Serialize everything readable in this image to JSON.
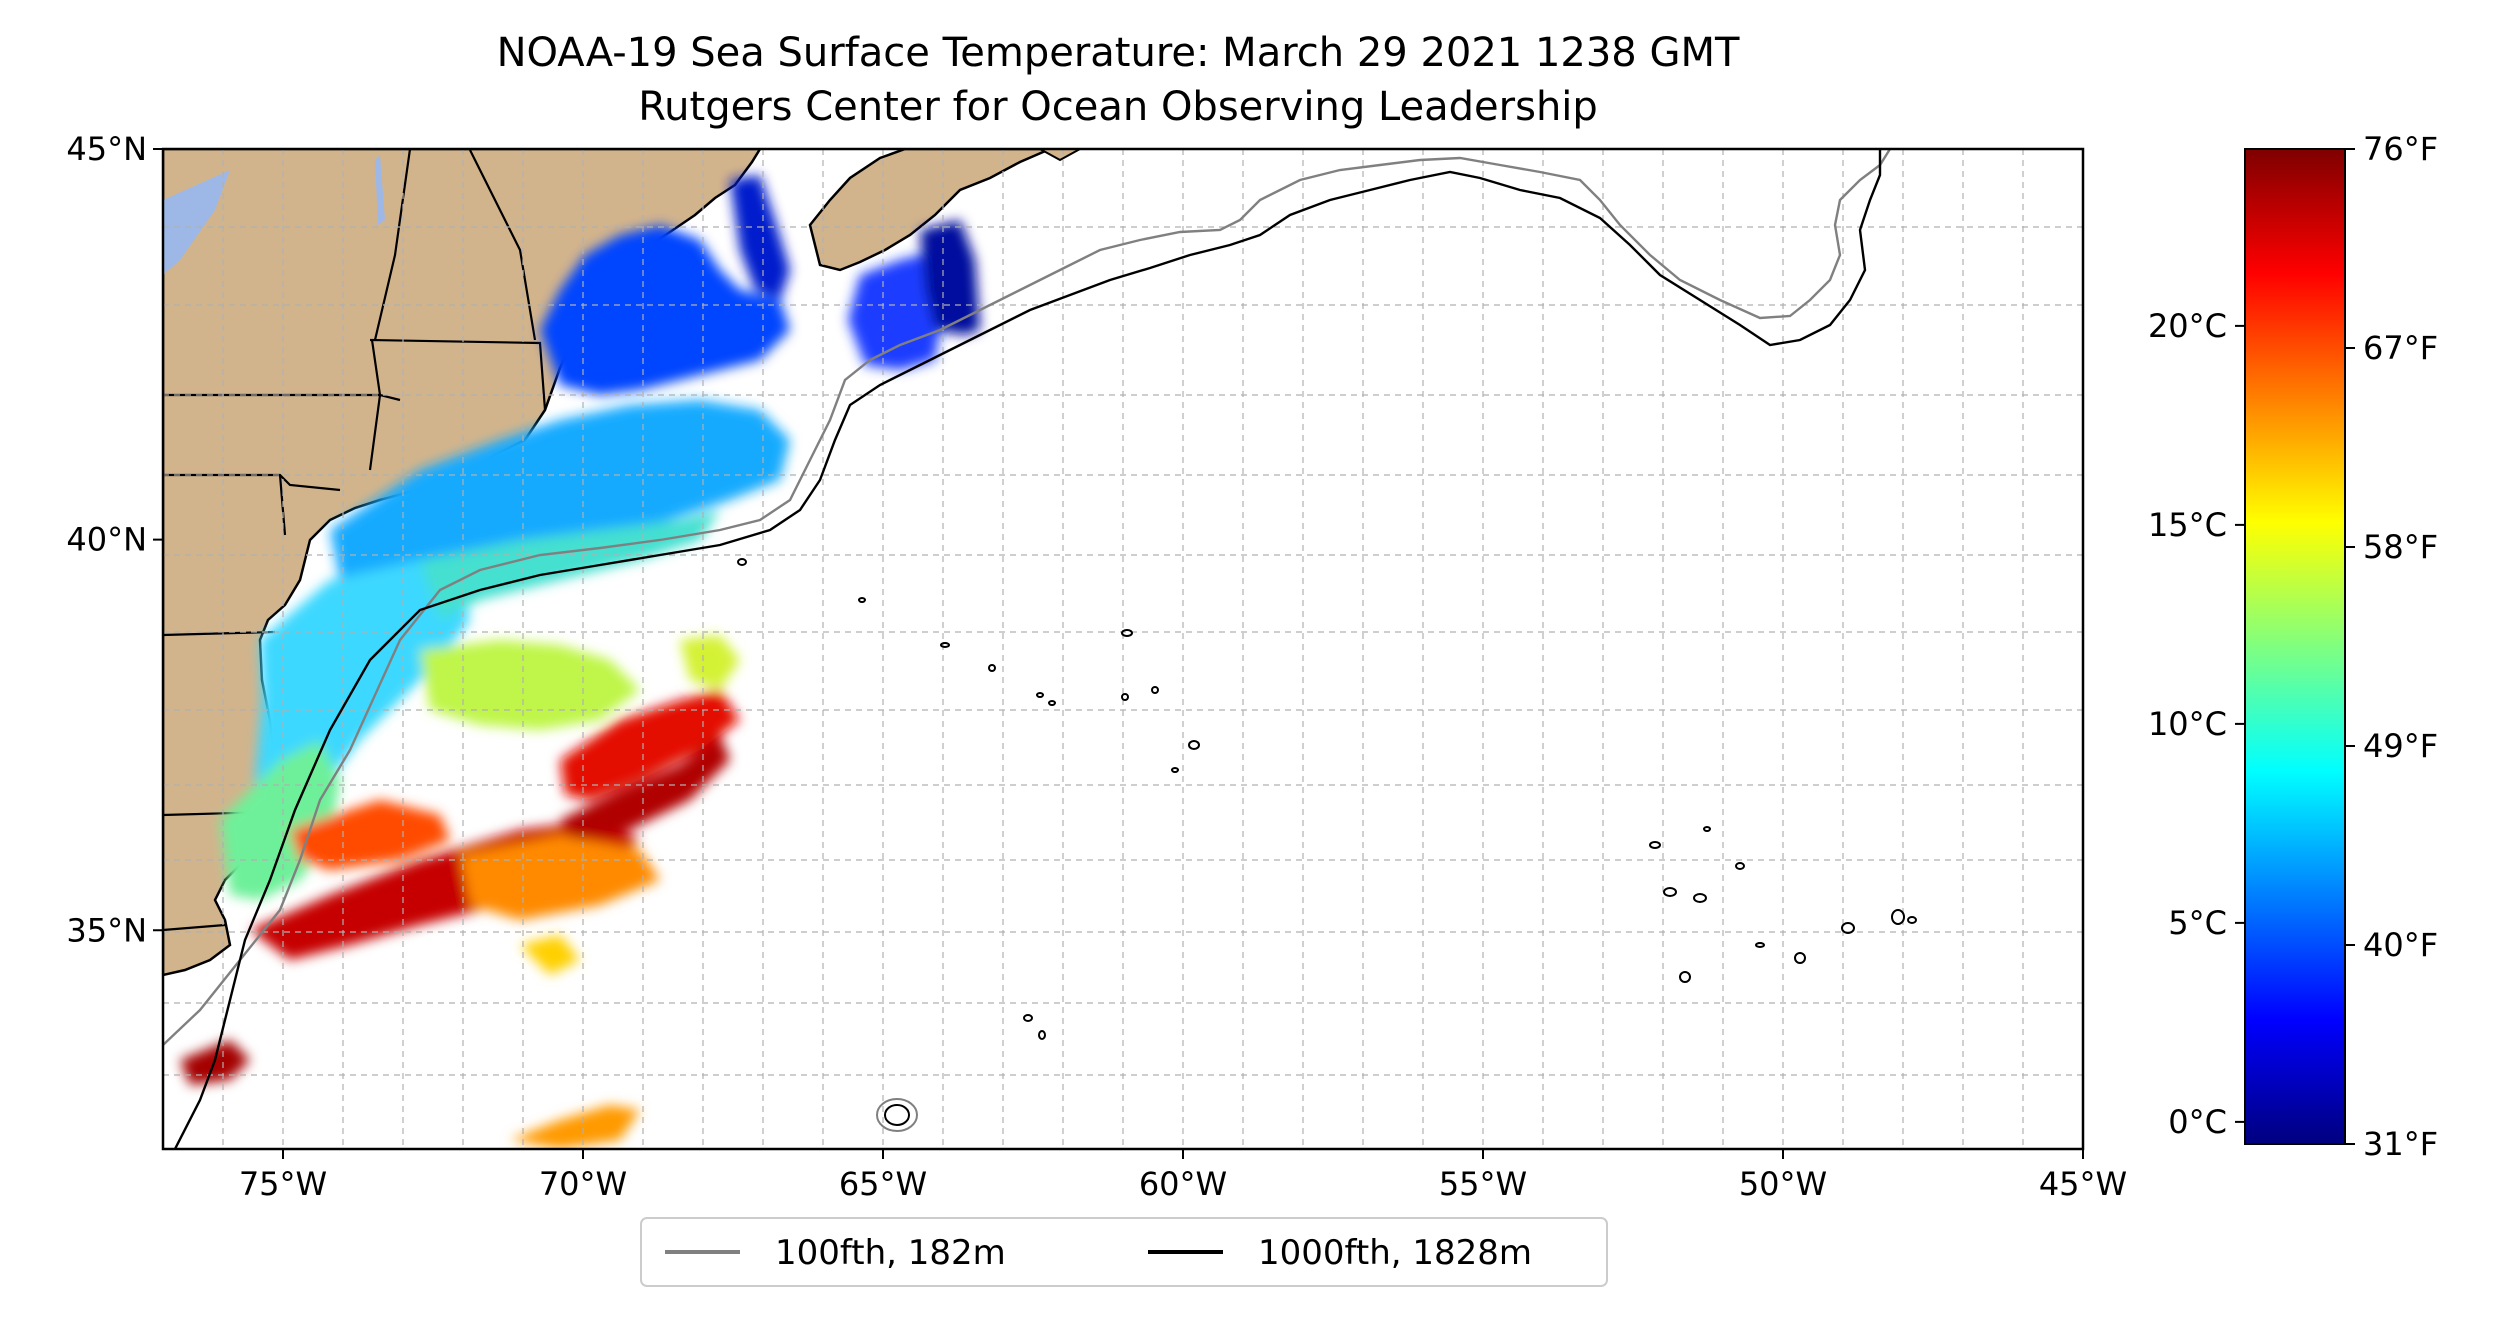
{
  "title": {
    "line1": "NOAA-19 Sea Surface Temperature: March 29 2021 1238 GMT",
    "line2": "Rutgers Center for Ocean Observing Leadership"
  },
  "map": {
    "lon_ticks": [
      {
        "value": -75,
        "label": "75°W"
      },
      {
        "value": -70,
        "label": "70°W"
      },
      {
        "value": -65,
        "label": "65°W"
      },
      {
        "value": -60,
        "label": "60°W"
      },
      {
        "value": -55,
        "label": "55°W"
      },
      {
        "value": -50,
        "label": "50°W"
      },
      {
        "value": -45,
        "label": "45°W"
      }
    ],
    "lat_ticks": [
      {
        "value": 45,
        "label": "45°N"
      },
      {
        "value": 40,
        "label": "40°N"
      },
      {
        "value": 35,
        "label": "35°N"
      }
    ],
    "extent": {
      "lon": [
        -77,
        -45
      ],
      "lat": [
        32.2,
        45
      ]
    },
    "grid": true,
    "land_color": "#d2b48c",
    "water_color": "#ffffff"
  },
  "legend": {
    "items": [
      {
        "label": "100fth, 182m",
        "color": "#808080"
      },
      {
        "label": "1000fth, 1828m",
        "color": "#000000"
      }
    ],
    "placement": "bottom-center"
  },
  "colorbar": {
    "colormap": "jet",
    "celsius_ticks": [
      {
        "value": 0,
        "label": "0°C"
      },
      {
        "value": 5,
        "label": "5°C"
      },
      {
        "value": 10,
        "label": "10°C"
      },
      {
        "value": 15,
        "label": "15°C"
      },
      {
        "value": 20,
        "label": "20°C"
      }
    ],
    "fahrenheit_ticks": [
      {
        "value": 31,
        "label": "31°F"
      },
      {
        "value": 40,
        "label": "40°F"
      },
      {
        "value": 49,
        "label": "49°F"
      },
      {
        "value": 58,
        "label": "58°F"
      },
      {
        "value": 67,
        "label": "67°F"
      },
      {
        "value": 76,
        "label": "76°F"
      }
    ],
    "range_f": [
      31,
      76
    ]
  }
}
